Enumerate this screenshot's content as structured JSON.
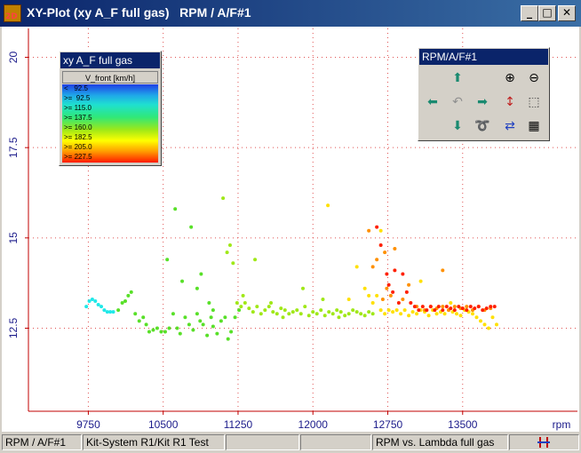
{
  "window": {
    "title": "XY-Plot (xy A_F full gas)   RPM / A/F#1",
    "app_icon_text": "2D",
    "buttons": {
      "minimize": "_",
      "maximize": "□",
      "close": "✕"
    }
  },
  "legend": {
    "title": "xy A_F full gas",
    "header": "V_front  [km/h]",
    "rows": [
      "<   92.5",
      ">=  92.5",
      ">= 115.0",
      ">= 137.5",
      ">= 160.0",
      ">= 182.5",
      ">= 205.0",
      ">= 227.5"
    ]
  },
  "toolbox": {
    "title": "RPM/A/F#1",
    "icons": [
      "arrow-up-icon",
      "arrow-left-icon",
      "undo-icon",
      "arrow-right-icon",
      "arrow-down-icon",
      "lasso-icon",
      "zoom-in-icon",
      "zoom-out-icon",
      "autoscale-icon",
      "select-rect-icon",
      "fit-icon",
      "calculator-icon"
    ]
  },
  "status": {
    "panel1": "RPM / A/F#1",
    "panel2": "Kit-System R1/Kit R1 Test",
    "panel3": "",
    "panel4": "",
    "panel5": "RPM vs. Lambda full gas"
  },
  "chart_data": {
    "type": "scatter",
    "xlabel": "rpm",
    "ylabel": "",
    "xlim": [
      9150,
      14650
    ],
    "ylim": [
      10.2,
      20.8
    ],
    "x_ticks": [
      "9750",
      "10500",
      "11250",
      "12000",
      "12750",
      "13500"
    ],
    "y_ticks": [
      "12.5",
      "15",
      "17.5",
      "20"
    ],
    "grid": true,
    "color_scale": [
      "#1f3fe6",
      "#1fa7e8",
      "#1fe0d0",
      "#30e878",
      "#9ee818",
      "#ffff00",
      "#ff9a00",
      "#ff1a00"
    ],
    "series": [
      {
        "color": "#20e8e8",
        "points": [
          [
            9730,
            13.1
          ],
          [
            9760,
            13.25
          ],
          [
            9790,
            13.3
          ],
          [
            9820,
            13.25
          ],
          [
            9850,
            13.15
          ],
          [
            9880,
            13.1
          ],
          [
            9910,
            13.0
          ],
          [
            9940,
            12.95
          ],
          [
            9970,
            12.95
          ],
          [
            10000,
            12.95
          ]
        ]
      },
      {
        "color": "#58e028",
        "points": [
          [
            10050,
            13.0
          ],
          [
            10090,
            13.2
          ],
          [
            10120,
            13.25
          ],
          [
            10150,
            13.4
          ],
          [
            10180,
            13.5
          ],
          [
            10220,
            12.9
          ],
          [
            10260,
            12.7
          ],
          [
            10300,
            12.8
          ],
          [
            10330,
            12.6
          ],
          [
            10360,
            12.4
          ],
          [
            10400,
            12.45
          ],
          [
            10440,
            12.5
          ],
          [
            10480,
            12.4
          ],
          [
            10520,
            12.4
          ],
          [
            10560,
            12.5
          ],
          [
            10600,
            12.9
          ],
          [
            10640,
            12.5
          ],
          [
            10670,
            12.35
          ],
          [
            10720,
            12.8
          ],
          [
            10760,
            12.6
          ],
          [
            10800,
            12.45
          ],
          [
            10840,
            12.9
          ],
          [
            10870,
            12.7
          ],
          [
            10900,
            12.6
          ],
          [
            10940,
            12.3
          ],
          [
            10980,
            12.8
          ],
          [
            11000,
            12.55
          ],
          [
            11040,
            12.35
          ],
          [
            11080,
            12.7
          ],
          [
            11120,
            12.8
          ],
          [
            11150,
            12.2
          ],
          [
            11180,
            12.4
          ],
          [
            11220,
            12.8
          ],
          [
            11260,
            13.0
          ],
          [
            10540,
            14.4
          ],
          [
            10620,
            15.8
          ],
          [
            10690,
            13.8
          ],
          [
            10780,
            15.3
          ],
          [
            10840,
            13.6
          ],
          [
            10880,
            14.0
          ],
          [
            10960,
            13.2
          ],
          [
            11000,
            13.0
          ]
        ]
      },
      {
        "color": "#a0e818",
        "points": [
          [
            11100,
            16.1
          ],
          [
            11140,
            14.6
          ],
          [
            11170,
            14.8
          ],
          [
            11200,
            14.3
          ],
          [
            11240,
            13.2
          ],
          [
            11280,
            13.1
          ],
          [
            11320,
            13.2
          ],
          [
            11360,
            13.05
          ],
          [
            11400,
            12.95
          ],
          [
            11440,
            13.1
          ],
          [
            11480,
            12.9
          ],
          [
            11520,
            13.0
          ],
          [
            11560,
            13.1
          ],
          [
            11600,
            12.95
          ],
          [
            11640,
            12.9
          ],
          [
            11680,
            13.05
          ],
          [
            11720,
            13.0
          ],
          [
            11760,
            12.9
          ],
          [
            11800,
            12.95
          ],
          [
            11840,
            13.0
          ],
          [
            11880,
            12.9
          ],
          [
            11920,
            13.1
          ],
          [
            11960,
            12.85
          ],
          [
            12000,
            12.95
          ],
          [
            12040,
            12.9
          ],
          [
            12080,
            13.0
          ],
          [
            12120,
            12.85
          ],
          [
            12160,
            12.95
          ],
          [
            12200,
            12.9
          ],
          [
            12240,
            13.0
          ],
          [
            12280,
            12.95
          ],
          [
            12320,
            12.85
          ],
          [
            12360,
            12.9
          ],
          [
            12400,
            13.0
          ],
          [
            12440,
            12.95
          ],
          [
            12480,
            12.9
          ],
          [
            12520,
            12.85
          ],
          [
            12560,
            12.95
          ],
          [
            12600,
            12.9
          ],
          [
            11300,
            13.4
          ],
          [
            11420,
            14.4
          ],
          [
            11580,
            13.2
          ],
          [
            11700,
            12.8
          ],
          [
            11900,
            13.6
          ],
          [
            12100,
            13.3
          ],
          [
            12260,
            12.8
          ]
        ]
      },
      {
        "color": "#ffe000",
        "points": [
          [
            12360,
            13.3
          ],
          [
            12440,
            14.2
          ],
          [
            12520,
            13.6
          ],
          [
            12560,
            13.4
          ],
          [
            12600,
            13.2
          ],
          [
            12640,
            13.4
          ],
          [
            12680,
            13.0
          ],
          [
            12720,
            12.9
          ],
          [
            12760,
            13.0
          ],
          [
            12800,
            12.95
          ],
          [
            12840,
            13.0
          ],
          [
            12880,
            12.9
          ],
          [
            12920,
            13.0
          ],
          [
            12960,
            12.85
          ],
          [
            13000,
            12.95
          ],
          [
            13040,
            12.9
          ],
          [
            13080,
            13.0
          ],
          [
            13120,
            12.95
          ],
          [
            13160,
            12.85
          ],
          [
            13200,
            13.0
          ],
          [
            13240,
            12.9
          ],
          [
            13280,
            12.95
          ],
          [
            13320,
            12.9
          ],
          [
            13360,
            13.0
          ],
          [
            13400,
            12.95
          ],
          [
            13440,
            12.9
          ],
          [
            13480,
            12.85
          ],
          [
            13520,
            13.0
          ],
          [
            13560,
            12.95
          ],
          [
            13600,
            12.9
          ],
          [
            13640,
            12.8
          ],
          [
            13680,
            12.7
          ],
          [
            13720,
            12.6
          ],
          [
            13760,
            12.5
          ],
          [
            13800,
            12.8
          ],
          [
            13840,
            12.6
          ],
          [
            12150,
            15.9
          ],
          [
            12680,
            15.2
          ],
          [
            13080,
            13.8
          ],
          [
            13380,
            13.2
          ]
        ]
      },
      {
        "color": "#ff9000",
        "points": [
          [
            12640,
            14.4
          ],
          [
            12700,
            13.3
          ],
          [
            12740,
            13.6
          ],
          [
            12780,
            13.4
          ],
          [
            12820,
            14.7
          ],
          [
            12900,
            13.3
          ],
          [
            12960,
            13.7
          ],
          [
            13040,
            13.1
          ],
          [
            13120,
            13.0
          ],
          [
            13180,
            13.1
          ],
          [
            13240,
            13.05
          ],
          [
            13300,
            13.1
          ],
          [
            13360,
            13.0
          ],
          [
            13420,
            13.1
          ],
          [
            13480,
            13.05
          ],
          [
            13540,
            13.1
          ],
          [
            13600,
            13.0
          ],
          [
            13660,
            13.1
          ],
          [
            13720,
            13.0
          ],
          [
            13780,
            13.05
          ],
          [
            12600,
            14.2
          ],
          [
            12720,
            14.6
          ],
          [
            13300,
            14.1
          ],
          [
            12560,
            15.2
          ]
        ]
      },
      {
        "color": "#ff2000",
        "points": [
          [
            12640,
            15.3
          ],
          [
            12680,
            14.8
          ],
          [
            12740,
            14.0
          ],
          [
            12800,
            13.5
          ],
          [
            12860,
            13.2
          ],
          [
            12900,
            14.0
          ],
          [
            12940,
            13.5
          ],
          [
            12980,
            13.2
          ],
          [
            13020,
            13.1
          ],
          [
            13060,
            13.0
          ],
          [
            13100,
            13.1
          ],
          [
            13140,
            13.0
          ],
          [
            13180,
            13.1
          ],
          [
            13220,
            13.0
          ],
          [
            13260,
            13.1
          ],
          [
            13300,
            13.0
          ],
          [
            13340,
            13.1
          ],
          [
            13380,
            13.05
          ],
          [
            13420,
            13.0
          ],
          [
            13460,
            13.1
          ],
          [
            13500,
            13.05
          ],
          [
            13540,
            13.0
          ],
          [
            13580,
            13.1
          ],
          [
            13620,
            13.05
          ],
          [
            13660,
            13.1
          ],
          [
            13700,
            13.0
          ],
          [
            13740,
            13.05
          ],
          [
            13780,
            13.1
          ],
          [
            13820,
            13.1
          ],
          [
            12820,
            14.1
          ],
          [
            12760,
            13.7
          ]
        ]
      }
    ]
  }
}
